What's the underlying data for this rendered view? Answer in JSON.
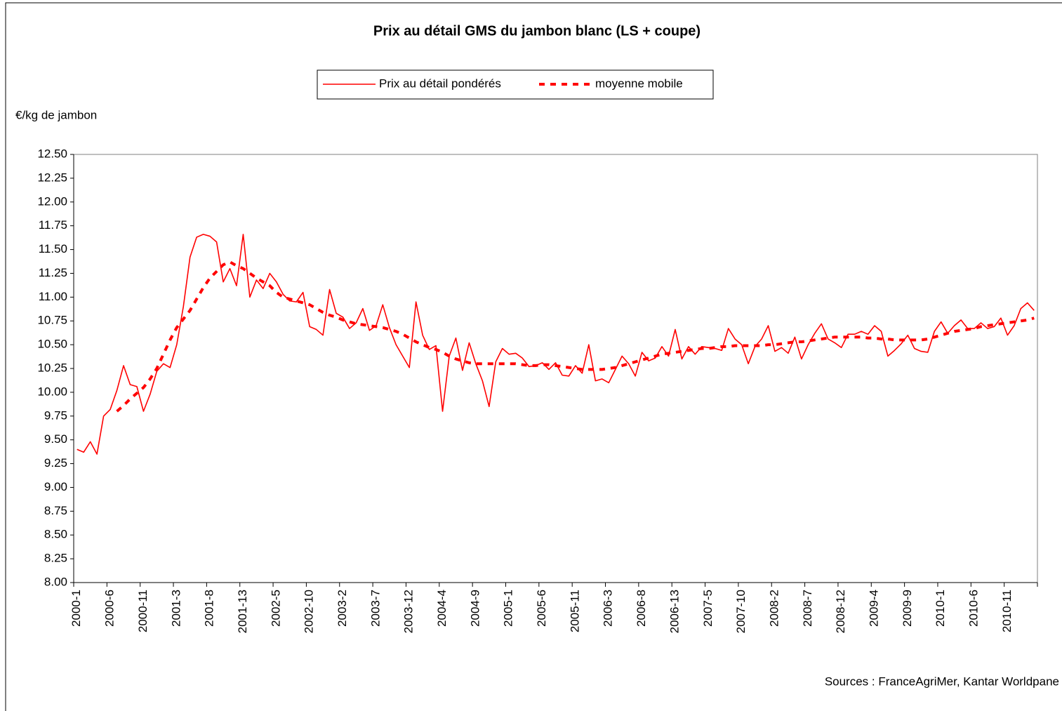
{
  "chart_data": {
    "type": "line",
    "title": "Prix au détail GMS du jambon blanc (LS + coupe)",
    "y_label": "€/kg de jambon",
    "source": "Sources : FranceAgriMer, Kantar Worldpane",
    "categories": [
      "2000-1",
      null,
      null,
      null,
      null,
      "2000-6",
      null,
      null,
      null,
      null,
      "2000-11",
      null,
      null,
      null,
      null,
      "2001-3",
      null,
      null,
      null,
      null,
      "2001-8",
      null,
      null,
      null,
      null,
      "2001-13",
      null,
      null,
      null,
      null,
      "2002-5",
      null,
      null,
      null,
      null,
      "2002-10",
      null,
      null,
      null,
      null,
      "2003-2",
      null,
      null,
      null,
      null,
      "2003-7",
      null,
      null,
      null,
      null,
      "2003-12",
      null,
      null,
      null,
      null,
      "2004-4",
      null,
      null,
      null,
      null,
      "2004-9",
      null,
      null,
      null,
      null,
      "2005-1",
      null,
      null,
      null,
      null,
      "2005-6",
      null,
      null,
      null,
      null,
      "2005-11",
      null,
      null,
      null,
      null,
      "2006-3",
      null,
      null,
      null,
      null,
      "2006-8",
      null,
      null,
      null,
      null,
      "2006-13",
      null,
      null,
      null,
      null,
      "2007-5",
      null,
      null,
      null,
      null,
      "2007-10",
      null,
      null,
      null,
      null,
      "2008-2",
      null,
      null,
      null,
      null,
      "2008-7",
      null,
      null,
      null,
      null,
      "2008-12",
      null,
      null,
      null,
      null,
      "2009-4",
      null,
      null,
      null,
      null,
      "2009-9",
      null,
      null,
      null,
      null,
      "2010-1",
      null,
      null,
      null,
      null,
      "2010-6",
      null,
      null,
      null,
      null,
      "2010-11",
      null,
      null,
      null,
      null
    ],
    "series": [
      {
        "name": "Prix au détail pondérés",
        "color": "#ff0000",
        "style": "solid",
        "values": [
          9.4,
          9.37,
          9.48,
          9.35,
          9.75,
          9.82,
          10.02,
          10.28,
          10.08,
          10.06,
          9.8,
          9.98,
          10.22,
          10.3,
          10.26,
          10.5,
          10.9,
          11.42,
          11.63,
          11.66,
          11.64,
          11.58,
          11.16,
          11.3,
          11.12,
          11.66,
          11.0,
          11.18,
          11.09,
          11.25,
          11.16,
          11.03,
          10.96,
          10.95,
          11.05,
          10.69,
          10.66,
          10.6,
          11.08,
          10.83,
          10.79,
          10.67,
          10.73,
          10.88,
          10.65,
          10.7,
          10.92,
          10.68,
          10.5,
          10.38,
          10.26,
          10.95,
          10.6,
          10.45,
          10.49,
          9.8,
          10.38,
          10.57,
          10.23,
          10.52,
          10.3,
          10.12,
          9.85,
          10.32,
          10.46,
          10.4,
          10.41,
          10.36,
          10.27,
          10.28,
          10.31,
          10.24,
          10.31,
          10.18,
          10.17,
          10.28,
          10.2,
          10.5,
          10.12,
          10.14,
          10.1,
          10.24,
          10.38,
          10.3,
          10.17,
          10.42,
          10.33,
          10.36,
          10.48,
          10.38,
          10.66,
          10.35,
          10.48,
          10.4,
          10.48,
          10.47,
          10.46,
          10.44,
          10.67,
          10.56,
          10.5,
          10.3,
          10.48,
          10.56,
          10.7,
          10.43,
          10.47,
          10.41,
          10.58,
          10.35,
          10.5,
          10.62,
          10.72,
          10.56,
          10.52,
          10.47,
          10.61,
          10.61,
          10.64,
          10.61,
          10.7,
          10.64,
          10.38,
          10.44,
          10.51,
          10.6,
          10.46,
          10.43,
          10.42,
          10.64,
          10.74,
          10.62,
          10.7,
          10.76,
          10.67,
          10.67,
          10.73,
          10.67,
          10.69,
          10.78,
          10.6,
          10.7,
          10.88,
          10.94,
          10.86
        ]
      },
      {
        "name": "moyenne mobile",
        "color": "#ff0000",
        "style": "dashed",
        "values": [
          null,
          null,
          null,
          null,
          null,
          null,
          9.8,
          9.86,
          9.93,
          9.99,
          10.05,
          10.14,
          10.25,
          10.4,
          10.55,
          10.68,
          10.77,
          10.86,
          10.98,
          11.1,
          11.2,
          11.27,
          11.34,
          11.37,
          11.33,
          11.3,
          11.25,
          11.2,
          11.16,
          11.12,
          11.05,
          11.0,
          10.98,
          10.96,
          10.94,
          10.92,
          10.88,
          10.84,
          10.81,
          10.79,
          10.76,
          10.74,
          10.72,
          10.71,
          10.7,
          10.69,
          10.68,
          10.66,
          10.64,
          10.61,
          10.57,
          10.53,
          10.5,
          10.47,
          10.45,
          10.42,
          10.38,
          10.35,
          10.33,
          10.31,
          10.3,
          10.3,
          10.3,
          10.3,
          10.3,
          10.3,
          10.3,
          10.29,
          10.28,
          10.28,
          10.29,
          10.29,
          10.28,
          10.27,
          10.26,
          10.25,
          10.24,
          10.24,
          10.24,
          10.24,
          10.25,
          10.26,
          10.28,
          10.3,
          10.32,
          10.34,
          10.36,
          10.38,
          10.4,
          10.41,
          10.42,
          10.43,
          10.44,
          10.45,
          10.46,
          10.46,
          10.47,
          10.48,
          10.48,
          10.49,
          10.49,
          10.49,
          10.49,
          10.49,
          10.5,
          10.5,
          10.51,
          10.52,
          10.53,
          10.53,
          10.54,
          10.55,
          10.56,
          10.57,
          10.58,
          10.58,
          10.58,
          10.58,
          10.58,
          10.57,
          10.57,
          10.56,
          10.56,
          10.55,
          10.55,
          10.55,
          10.55,
          10.55,
          10.56,
          10.58,
          10.6,
          10.62,
          10.64,
          10.65,
          10.66,
          10.67,
          10.69,
          10.7,
          10.71,
          10.72,
          10.73,
          10.74,
          10.75,
          10.76,
          10.78
        ]
      }
    ],
    "ylim": [
      8,
      12.5
    ],
    "yticks": [
      {
        "value": 8,
        "label": "8.00"
      },
      {
        "value": 8.25,
        "label": "8.25"
      },
      {
        "value": 8.5,
        "label": "8.50"
      },
      {
        "value": 8.75,
        "label": "8.75"
      },
      {
        "value": 9,
        "label": "9.00"
      },
      {
        "value": 9.25,
        "label": "9.25"
      },
      {
        "value": 9.5,
        "label": "9.50"
      },
      {
        "value": 9.75,
        "label": "9.75"
      },
      {
        "value": 10,
        "label": "10.00"
      },
      {
        "value": 10.25,
        "label": "10.25"
      },
      {
        "value": 10.5,
        "label": "10.50"
      },
      {
        "value": 10.75,
        "label": "10.75"
      },
      {
        "value": 11,
        "label": "11.00"
      },
      {
        "value": 11.25,
        "label": "11.25"
      },
      {
        "value": 11.5,
        "label": "11.50"
      },
      {
        "value": 11.75,
        "label": "11.75"
      },
      {
        "value": 12,
        "label": "12.00"
      },
      {
        "value": 12.25,
        "label": "12.25"
      },
      {
        "value": 12.5,
        "label": "12.50"
      }
    ],
    "grid": false,
    "legend": "top"
  }
}
